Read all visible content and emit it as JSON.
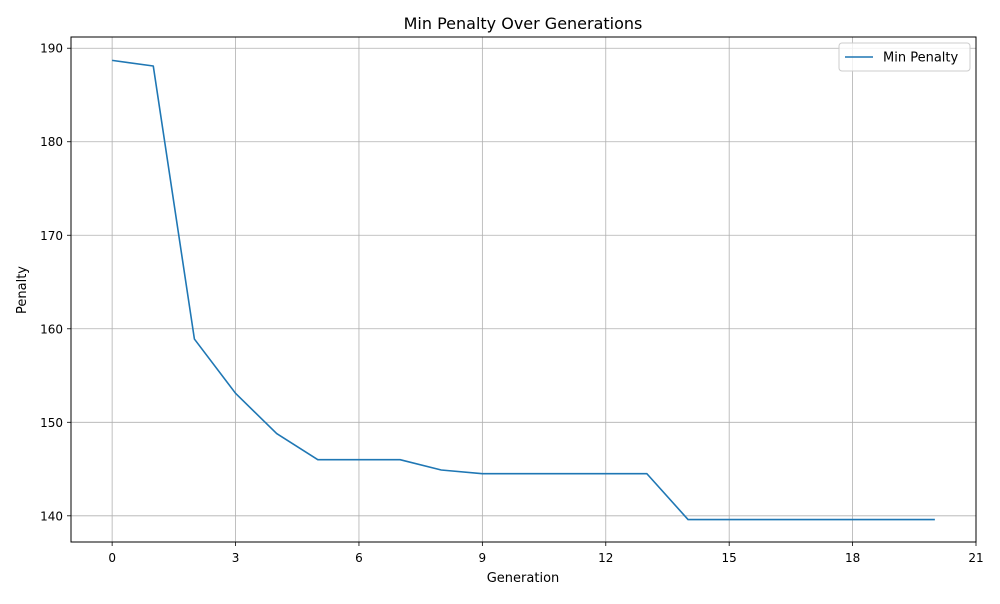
{
  "chart_data": {
    "type": "line",
    "title": "Min Penalty Over Generations",
    "xlabel": "Generation",
    "ylabel": "Penalty",
    "xlim": [
      -1,
      21
    ],
    "ylim": [
      137.2,
      191.2
    ],
    "xticks": [
      0,
      3,
      6,
      9,
      12,
      15,
      18,
      21
    ],
    "yticks": [
      140,
      150,
      160,
      170,
      180,
      190
    ],
    "grid": true,
    "legend_position": "top-right",
    "series": [
      {
        "name": "Min Penalty",
        "color": "#1f77b4",
        "x": [
          0,
          1,
          2,
          3,
          4,
          5,
          6,
          7,
          8,
          9,
          10,
          11,
          12,
          13,
          14,
          15,
          16,
          17,
          18,
          19,
          20
        ],
        "y": [
          188.7,
          188.1,
          158.9,
          153.1,
          148.8,
          146.0,
          146.0,
          146.0,
          144.9,
          144.5,
          144.5,
          144.5,
          144.5,
          144.5,
          139.6,
          139.6,
          139.6,
          139.6,
          139.6,
          139.6,
          139.6
        ]
      }
    ]
  }
}
